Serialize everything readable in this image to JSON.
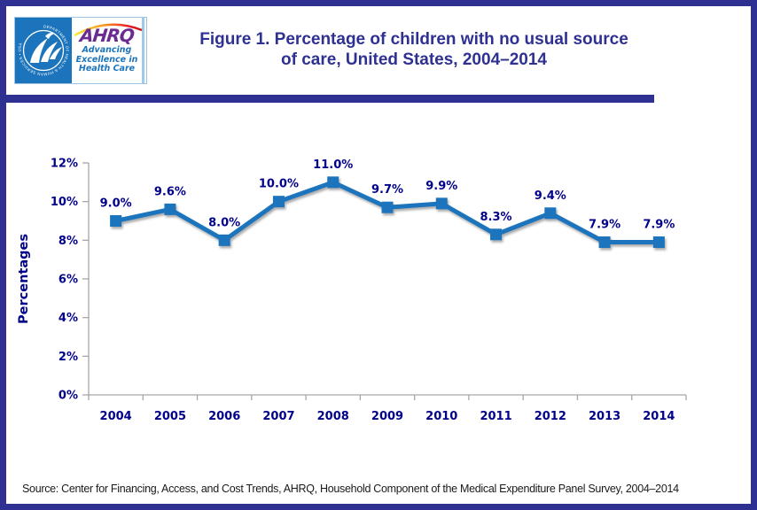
{
  "header": {
    "logo": {
      "seal_text": "DEPARTMENT OF HEALTH & HUMAN SERVICES • USA",
      "ahrq_acronym": "AHRQ",
      "tagline_lines": [
        "Advancing",
        "Excellence in",
        "Health Care"
      ]
    },
    "title_line1": "Figure 1. Percentage of children with no usual source",
    "title_line2": "of care, United States, 2004–2014"
  },
  "chart_data": {
    "type": "line",
    "title": "Figure 1. Percentage of children with no usual source of care, United States, 2004–2014",
    "categories": [
      "2004",
      "2005",
      "2006",
      "2007",
      "2008",
      "2009",
      "2010",
      "2011",
      "2012",
      "2013",
      "2014"
    ],
    "values": [
      9.0,
      9.6,
      8.0,
      10.0,
      11.0,
      9.7,
      9.9,
      8.3,
      9.4,
      7.9,
      7.9
    ],
    "point_labels": [
      "9.0%",
      "9.6%",
      "8.0%",
      "10.0%",
      "11.0%",
      "9.7%",
      "9.9%",
      "8.3%",
      "9.4%",
      "7.9%",
      "7.9%"
    ],
    "xlabel": "",
    "ylabel": "Percentages",
    "ylim": [
      0,
      12
    ],
    "ytick_step": 2,
    "ytick_labels": [
      "0%",
      "2%",
      "4%",
      "6%",
      "8%",
      "10%",
      "12%"
    ],
    "grid": false,
    "legend": "none",
    "line_color": "#1B75BC",
    "label_color": "#00008B",
    "axis_color": "#A6A6A6"
  },
  "footer": {
    "source": "Source: Center for Financing, Access, and Cost Trends, AHRQ, Household Component of the Medical Expenditure Panel Survey, 2004–2014"
  },
  "colors": {
    "accent_border": "#2E3192",
    "title_text": "#2E3192",
    "chart_line": "#1B75BC",
    "chart_text": "#00008B",
    "hhs_blue": "#1C75BC",
    "ahrq_purple": "#6B2C91"
  }
}
